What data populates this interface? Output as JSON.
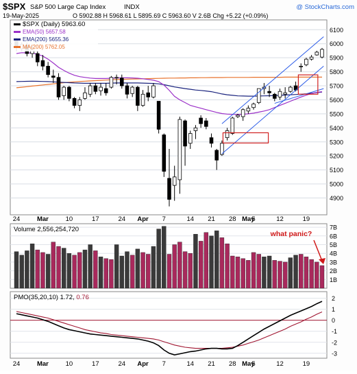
{
  "header": {
    "symbol": "$SPX",
    "name": "S&P 500 Large Cap Index",
    "exchange": "INDX",
    "watermark": "@ StockCharts.com",
    "date": "19-May-2025",
    "ohlc": "O 5902.88 H 5968.61 L 5895.69 C 5963.60 V 2.6B Chg +5.22 (+0.09%)",
    "change_color": "#1a1aff"
  },
  "colors": {
    "up_candle": "#ffffff",
    "down_candle": "#000000",
    "ema50": "#9b30c8",
    "ema200": "#1a237e",
    "ma200": "#e8722c",
    "channel": "#2a5be8",
    "annotation_box": "#d02020",
    "volume_up": "#a9295c",
    "volume_down": "#3a3a3a",
    "pmo_line": "#000000",
    "pmo_signal": "#a01530",
    "annotation_text": "#d01818",
    "panel_bg": "#e8eef6"
  },
  "x_axis": {
    "labels": [
      "24",
      "Mar",
      "10",
      "17",
      "24",
      "Apr",
      "7",
      "14",
      "21",
      "28",
      "May",
      "5",
      "12",
      "19"
    ]
  },
  "chart_data": [
    {
      "type": "candlestick",
      "title": "$SPX (Daily) 5963.60",
      "legend": [
        {
          "name": "$SPX (Daily)",
          "value": "5963.60"
        },
        {
          "name": "EMA(50)",
          "value": "5657.58"
        },
        {
          "name": "EMA(200)",
          "value": "5655.36"
        },
        {
          "name": "MA(200)",
          "value": "5762.05"
        }
      ],
      "y_ticks": [
        4900,
        5000,
        5100,
        5200,
        5300,
        5400,
        5500,
        5600,
        5700,
        5800,
        5900,
        6000,
        6100
      ],
      "ylim": [
        4780,
        6170
      ],
      "candles": [
        {
          "o": 6030,
          "h": 6045,
          "l": 5945,
          "c": 5975
        },
        {
          "o": 5965,
          "h": 6010,
          "l": 5945,
          "c": 5995
        },
        {
          "o": 5990,
          "h": 6010,
          "l": 5910,
          "c": 5930
        },
        {
          "o": 5930,
          "h": 5985,
          "l": 5900,
          "c": 5960
        },
        {
          "o": 5930,
          "h": 5945,
          "l": 5840,
          "c": 5870
        },
        {
          "o": 5880,
          "h": 5920,
          "l": 5810,
          "c": 5840
        },
        {
          "o": 5840,
          "h": 5870,
          "l": 5760,
          "c": 5780
        },
        {
          "o": 5770,
          "h": 5815,
          "l": 5720,
          "c": 5760
        },
        {
          "o": 5760,
          "h": 5790,
          "l": 5600,
          "c": 5620
        },
        {
          "o": 5630,
          "h": 5700,
          "l": 5600,
          "c": 5690
        },
        {
          "o": 5690,
          "h": 5700,
          "l": 5590,
          "c": 5610
        },
        {
          "o": 5610,
          "h": 5620,
          "l": 5540,
          "c": 5560
        },
        {
          "o": 5560,
          "h": 5620,
          "l": 5520,
          "c": 5600
        },
        {
          "o": 5610,
          "h": 5690,
          "l": 5600,
          "c": 5650
        },
        {
          "o": 5640,
          "h": 5720,
          "l": 5620,
          "c": 5700
        },
        {
          "o": 5700,
          "h": 5720,
          "l": 5640,
          "c": 5660
        },
        {
          "o": 5665,
          "h": 5720,
          "l": 5630,
          "c": 5690
        },
        {
          "o": 5680,
          "h": 5720,
          "l": 5630,
          "c": 5650
        },
        {
          "o": 5690,
          "h": 5770,
          "l": 5680,
          "c": 5760
        },
        {
          "o": 5760,
          "h": 5780,
          "l": 5710,
          "c": 5760
        },
        {
          "o": 5755,
          "h": 5780,
          "l": 5680,
          "c": 5700
        },
        {
          "o": 5700,
          "h": 5720,
          "l": 5610,
          "c": 5640
        },
        {
          "o": 5645,
          "h": 5700,
          "l": 5620,
          "c": 5690
        },
        {
          "o": 5690,
          "h": 5700,
          "l": 5520,
          "c": 5560
        },
        {
          "o": 5560,
          "h": 5670,
          "l": 5550,
          "c": 5640
        },
        {
          "o": 5650,
          "h": 5700,
          "l": 5590,
          "c": 5620
        },
        {
          "o": 5620,
          "h": 5720,
          "l": 5610,
          "c": 5700
        },
        {
          "o": 5590,
          "h": 5590,
          "l": 5360,
          "c": 5390
        },
        {
          "o": 5350,
          "h": 5360,
          "l": 5050,
          "c": 5090
        },
        {
          "o": 5040,
          "h": 5250,
          "l": 4840,
          "c": 4890
        },
        {
          "o": 4990,
          "h": 5130,
          "l": 4880,
          "c": 5050
        },
        {
          "o": 5030,
          "h": 5480,
          "l": 4930,
          "c": 5460
        },
        {
          "o": 5450,
          "h": 5460,
          "l": 5130,
          "c": 5270
        },
        {
          "o": 5290,
          "h": 5380,
          "l": 5250,
          "c": 5360
        },
        {
          "o": 5380,
          "h": 5420,
          "l": 5320,
          "c": 5400
        },
        {
          "o": 5470,
          "h": 5490,
          "l": 5400,
          "c": 5430
        },
        {
          "o": 5450,
          "h": 5470,
          "l": 5390,
          "c": 5410
        },
        {
          "o": 5330,
          "h": 5360,
          "l": 5260,
          "c": 5290
        },
        {
          "o": 5240,
          "h": 5250,
          "l": 5100,
          "c": 5170
        },
        {
          "o": 5210,
          "h": 5310,
          "l": 5200,
          "c": 5290
        },
        {
          "o": 5330,
          "h": 5400,
          "l": 5310,
          "c": 5380
        },
        {
          "o": 5360,
          "h": 5480,
          "l": 5350,
          "c": 5470
        },
        {
          "o": 5480,
          "h": 5500,
          "l": 5470,
          "c": 5490
        },
        {
          "o": 5480,
          "h": 5540,
          "l": 5450,
          "c": 5530
        },
        {
          "o": 5520,
          "h": 5560,
          "l": 5500,
          "c": 5540
        },
        {
          "o": 5545,
          "h": 5580,
          "l": 5530,
          "c": 5570
        },
        {
          "o": 5580,
          "h": 5680,
          "l": 5570,
          "c": 5680
        },
        {
          "o": 5680,
          "h": 5720,
          "l": 5640,
          "c": 5690
        },
        {
          "o": 5660,
          "h": 5700,
          "l": 5620,
          "c": 5650
        },
        {
          "o": 5640,
          "h": 5650,
          "l": 5590,
          "c": 5610
        },
        {
          "o": 5620,
          "h": 5680,
          "l": 5600,
          "c": 5660
        },
        {
          "o": 5640,
          "h": 5690,
          "l": 5610,
          "c": 5650
        },
        {
          "o": 5660,
          "h": 5700,
          "l": 5650,
          "c": 5690
        },
        {
          "o": 5700,
          "h": 5730,
          "l": 5660,
          "c": 5670
        },
        {
          "o": 5840,
          "h": 5860,
          "l": 5800,
          "c": 5840
        },
        {
          "o": 5850,
          "h": 5900,
          "l": 5840,
          "c": 5890
        },
        {
          "o": 5890,
          "h": 5920,
          "l": 5880,
          "c": 5905
        },
        {
          "o": 5920,
          "h": 5950,
          "l": 5915,
          "c": 5940
        },
        {
          "o": 5905,
          "h": 5970,
          "l": 5895,
          "c": 5960
        }
      ],
      "ema50": [
        5930,
        5936,
        5935,
        5933,
        5925,
        5912,
        5890,
        5862,
        5832,
        5810,
        5790,
        5775,
        5765,
        5760,
        5755,
        5752,
        5752,
        5752,
        5754,
        5756,
        5757,
        5757,
        5756,
        5754,
        5750,
        5745,
        5740,
        5730,
        5705,
        5668,
        5625,
        5600,
        5580,
        5560,
        5550,
        5540,
        5530,
        5520,
        5510,
        5502,
        5498,
        5496,
        5495,
        5497,
        5500,
        5505,
        5512,
        5520,
        5530,
        5545,
        5560,
        5575,
        5590,
        5605,
        5620,
        5633,
        5645,
        5653,
        5658
      ],
      "ema200": [
        5730,
        5731,
        5732,
        5733,
        5732,
        5731,
        5730,
        5728,
        5726,
        5724,
        5722,
        5720,
        5719,
        5718,
        5718,
        5718,
        5718,
        5718,
        5719,
        5720,
        5720,
        5720,
        5720,
        5720,
        5719,
        5718,
        5717,
        5714,
        5708,
        5700,
        5692,
        5686,
        5680,
        5675,
        5670,
        5667,
        5663,
        5658,
        5650,
        5642,
        5636,
        5632,
        5628,
        5627,
        5626,
        5626,
        5627,
        5628,
        5629,
        5630,
        5632,
        5634,
        5636,
        5638,
        5640,
        5643,
        5647,
        5651,
        5655
      ],
      "ma200": [
        5686,
        5690,
        5694,
        5698,
        5702,
        5706,
        5710,
        5714,
        5718,
        5722,
        5725,
        5728,
        5731,
        5733,
        5735,
        5737,
        5739,
        5741,
        5743,
        5745,
        5746,
        5747,
        5748,
        5749,
        5750,
        5751,
        5752,
        5753,
        5754,
        5755,
        5755,
        5756,
        5756,
        5757,
        5757,
        5758,
        5758,
        5759,
        5759,
        5759,
        5760,
        5760,
        5760,
        5760,
        5760,
        5761,
        5761,
        5761,
        5761,
        5761,
        5761,
        5762,
        5762,
        5762,
        5762,
        5762,
        5762,
        5762,
        5762
      ]
    },
    {
      "type": "bar",
      "title": "Volume 2,556,254,720",
      "y_ticks": [
        "1B",
        "2B",
        "3B",
        "4B",
        "5B",
        "6B",
        "7B"
      ],
      "ylim": [
        0,
        7.4
      ],
      "values": [
        4.2,
        3.8,
        4.3,
        5.1,
        4.4,
        4.1,
        3.9,
        5.3,
        4.8,
        4.6,
        4.0,
        3.8,
        4.1,
        4.4,
        5.0,
        4.3,
        3.6,
        3.4,
        3.3,
        5.0,
        3.7,
        4.2,
        3.8,
        4.5,
        4.1,
        3.9,
        4.8,
        6.8,
        7.1,
        3.9,
        5.0,
        5.3,
        4.2,
        4.0,
        6.2,
        5.4,
        6.4,
        6.0,
        6.6,
        5.8,
        5.1,
        3.7,
        3.6,
        3.4,
        3.2,
        4.1,
        3.9,
        3.6,
        3.7,
        3.2,
        3.1,
        3.0,
        3.5,
        3.8,
        3.9,
        3.6,
        3.3,
        3.0,
        2.6
      ],
      "up": [
        false,
        false,
        false,
        false,
        true,
        true,
        false,
        true,
        true,
        false,
        false,
        true,
        true,
        false,
        false,
        true,
        false,
        true,
        true,
        false,
        false,
        false,
        true,
        false,
        true,
        true,
        false,
        false,
        false,
        true,
        true,
        true,
        true,
        true,
        false,
        true,
        true,
        false,
        false,
        true,
        true,
        true,
        true,
        true,
        true,
        true,
        true,
        false,
        false,
        true,
        true,
        true,
        false,
        false,
        true,
        true,
        true,
        true,
        true
      ],
      "annotation": "what panic?"
    },
    {
      "type": "line",
      "title": "PMO(35,20,10) 1.72, 0.76",
      "legend": [
        {
          "name": "PMO(35,20,10)",
          "value": "1.72"
        },
        {
          "name": "signal",
          "value": "0.76"
        }
      ],
      "y_ticks": [
        2,
        1,
        0,
        -1,
        -2,
        -3
      ],
      "ylim": [
        -3.45,
        2.6
      ],
      "pmo": [
        0.6,
        0.5,
        0.4,
        0.3,
        0.2,
        0.05,
        -0.1,
        -0.3,
        -0.5,
        -0.7,
        -0.85,
        -0.95,
        -1.05,
        -1.15,
        -1.25,
        -1.3,
        -1.35,
        -1.4,
        -1.45,
        -1.5,
        -1.55,
        -1.6,
        -1.65,
        -1.7,
        -1.8,
        -1.9,
        -2.05,
        -2.3,
        -2.7,
        -3.0,
        -3.15,
        -3.05,
        -2.95,
        -2.85,
        -2.8,
        -2.7,
        -2.6,
        -2.55,
        -2.55,
        -2.6,
        -2.6,
        -2.55,
        -2.3,
        -2.0,
        -1.7,
        -1.4,
        -1.1,
        -0.8,
        -0.55,
        -0.3,
        -0.05,
        0.2,
        0.45,
        0.65,
        0.85,
        1.05,
        1.25,
        1.5,
        1.72
      ],
      "signal": [
        0.8,
        0.7,
        0.6,
        0.5,
        0.4,
        0.3,
        0.2,
        0.05,
        -0.1,
        -0.25,
        -0.4,
        -0.55,
        -0.7,
        -0.85,
        -0.95,
        -1.05,
        -1.15,
        -1.2,
        -1.3,
        -1.35,
        -1.4,
        -1.45,
        -1.5,
        -1.55,
        -1.6,
        -1.65,
        -1.7,
        -1.8,
        -1.95,
        -2.1,
        -2.25,
        -2.35,
        -2.45,
        -2.5,
        -2.55,
        -2.55,
        -2.55,
        -2.55,
        -2.55,
        -2.55,
        -2.5,
        -2.45,
        -2.35,
        -2.25,
        -2.1,
        -1.95,
        -1.8,
        -1.6,
        -1.4,
        -1.2,
        -1.0,
        -0.8,
        -0.55,
        -0.35,
        -0.15,
        0.1,
        0.3,
        0.55,
        0.76
      ]
    }
  ]
}
